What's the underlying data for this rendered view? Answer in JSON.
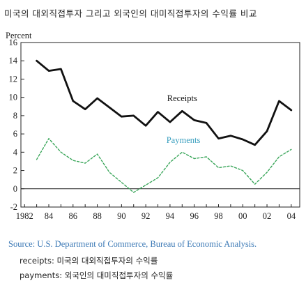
{
  "title": "미국의 대외직접투자 그리고 외국인의 대미직접투자의 수익률 비교",
  "chart_data": {
    "type": "line",
    "ylabel": "Percent",
    "xlabel": "",
    "ylim": [
      -2,
      16
    ],
    "xlim": [
      1981.7,
      2004.7
    ],
    "y_ticks": [
      -2,
      0,
      2,
      4,
      6,
      8,
      10,
      12,
      14,
      16
    ],
    "x_ticks": [
      {
        "value": 1982,
        "label": "1982"
      },
      {
        "value": 1984,
        "label": "84"
      },
      {
        "value": 1986,
        "label": "86"
      },
      {
        "value": 1988,
        "label": "88"
      },
      {
        "value": 1990,
        "label": "90"
      },
      {
        "value": 1992,
        "label": "92"
      },
      {
        "value": 1994,
        "label": "94"
      },
      {
        "value": 1996,
        "label": "96"
      },
      {
        "value": 1998,
        "label": "98"
      },
      {
        "value": 2000,
        "label": "00"
      },
      {
        "value": 2002,
        "label": "02"
      },
      {
        "value": 2004,
        "label": "04"
      }
    ],
    "x": [
      1983,
      1984,
      1985,
      1986,
      1987,
      1988,
      1989,
      1990,
      1991,
      1992,
      1993,
      1994,
      1995,
      1996,
      1997,
      1998,
      1999,
      2000,
      2001,
      2002,
      2003,
      2004
    ],
    "series": [
      {
        "name": "Receipts",
        "color": "#111111",
        "style": "solid",
        "values": [
          14.0,
          12.9,
          13.1,
          9.6,
          8.7,
          9.9,
          8.9,
          7.9,
          8.0,
          6.9,
          8.4,
          7.3,
          8.5,
          7.5,
          7.2,
          5.5,
          5.8,
          5.4,
          4.8,
          6.3,
          9.6,
          8.6
        ]
      },
      {
        "name": "Payments",
        "color": "#3aa65a",
        "style": "dashed",
        "values": [
          3.2,
          5.5,
          4.0,
          3.1,
          2.8,
          3.8,
          1.8,
          0.7,
          -0.4,
          0.4,
          1.2,
          2.9,
          4.0,
          3.3,
          3.5,
          2.3,
          2.5,
          2.0,
          0.5,
          1.8,
          3.5,
          4.3
        ]
      }
    ],
    "annotations": [
      {
        "text": "Receipts",
        "x": 1995.0,
        "y": 9.6,
        "color": "#111111"
      },
      {
        "text": "Payments",
        "x": 1995.1,
        "y": 5.0,
        "color": "#3a9fbf"
      }
    ]
  },
  "source": "Source: U.S. Department of Commerce, Bureau of Economic Analysis.",
  "notes": [
    "receipts: 미국의 대외직접투자의 수익률",
    "payments: 외국인의 대미직접투자의 수익률"
  ]
}
